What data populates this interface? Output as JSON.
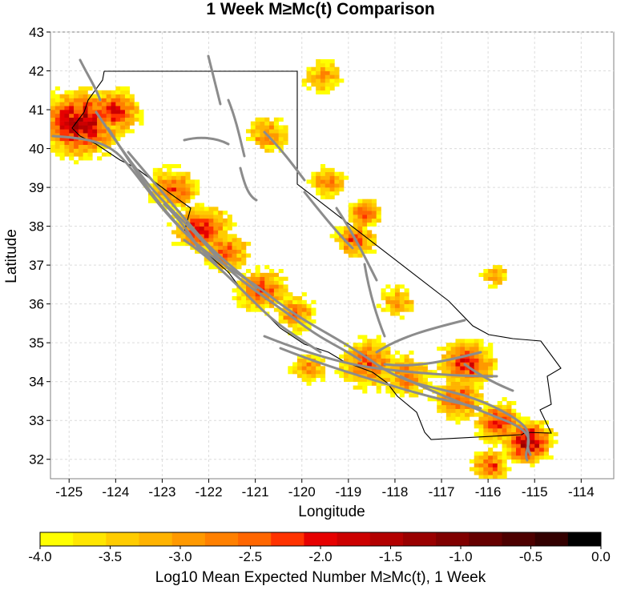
{
  "title": "1 Week M≥Mc(t) Comparison",
  "x_axis": {
    "label": "Longitude",
    "ticks": [
      "-125",
      "-124",
      "-123",
      "-122",
      "-121",
      "-120",
      "-119",
      "-118",
      "-117",
      "-116",
      "-115",
      "-114"
    ]
  },
  "y_axis": {
    "label": "Latitude",
    "ticks": [
      "43",
      "42",
      "41",
      "40",
      "39",
      "38",
      "37",
      "36",
      "35",
      "34",
      "33",
      "32"
    ]
  },
  "colorbar": {
    "label": "Log10 Mean Expected Number M≥Mc(t), 1 Week",
    "ticks": [
      "-4.0",
      "-3.5",
      "-3.0",
      "-2.5",
      "-2.0",
      "-1.5",
      "-1.0",
      "-0.5",
      "0.0"
    ],
    "colors": [
      "#ffff00",
      "#ffe600",
      "#ffcc00",
      "#ffb300",
      "#ff9900",
      "#ff8000",
      "#ff6600",
      "#ff3300",
      "#e60000",
      "#cc0000",
      "#b30000",
      "#990000",
      "#800000",
      "#660000",
      "#4d0000",
      "#330000",
      "#000000"
    ]
  },
  "chart_data": {
    "type": "heatmap",
    "title": "1 Week M≥Mc(t) Comparison",
    "xlabel": "Longitude",
    "ylabel": "Latitude",
    "xlim": [
      -125.4,
      -113.3
    ],
    "ylim": [
      31.5,
      43.0
    ],
    "grid": true,
    "colorbar_range": [
      -4.0,
      0.0
    ],
    "colorbar_label": "Log10 Mean Expected Number M≥Mc(t), 1 Week",
    "hotspots": [
      {
        "lon": -124.8,
        "lat": 40.6,
        "value": -1.5,
        "spread": 0.55
      },
      {
        "lon": -124.1,
        "lat": 40.9,
        "value": -1.9,
        "spread": 0.4
      },
      {
        "lon": -122.8,
        "lat": 38.9,
        "value": -2.4,
        "spread": 0.45
      },
      {
        "lon": -122.2,
        "lat": 37.9,
        "value": -2.0,
        "spread": 0.45
      },
      {
        "lon": -121.7,
        "lat": 37.3,
        "value": -2.3,
        "spread": 0.4
      },
      {
        "lon": -120.9,
        "lat": 36.3,
        "value": -2.3,
        "spread": 0.45
      },
      {
        "lon": -120.2,
        "lat": 35.7,
        "value": -2.6,
        "spread": 0.4
      },
      {
        "lon": -118.9,
        "lat": 37.6,
        "value": -2.3,
        "spread": 0.35
      },
      {
        "lon": -118.7,
        "lat": 38.3,
        "value": -2.3,
        "spread": 0.3
      },
      {
        "lon": -119.5,
        "lat": 39.1,
        "value": -2.6,
        "spread": 0.35
      },
      {
        "lon": -118.6,
        "lat": 34.4,
        "value": -2.3,
        "spread": 0.5
      },
      {
        "lon": -117.8,
        "lat": 34.1,
        "value": -2.5,
        "spread": 0.45
      },
      {
        "lon": -116.5,
        "lat": 34.4,
        "value": -2.0,
        "spread": 0.45
      },
      {
        "lon": -116.7,
        "lat": 33.5,
        "value": -2.2,
        "spread": 0.4
      },
      {
        "lon": -115.8,
        "lat": 32.9,
        "value": -2.1,
        "spread": 0.4
      },
      {
        "lon": -115.2,
        "lat": 32.4,
        "value": -1.4,
        "spread": 0.35
      },
      {
        "lon": -116.0,
        "lat": 31.8,
        "value": -2.2,
        "spread": 0.3
      },
      {
        "lon": -119.6,
        "lat": 41.8,
        "value": -2.8,
        "spread": 0.4
      },
      {
        "lon": -120.8,
        "lat": 40.3,
        "value": -2.7,
        "spread": 0.4
      },
      {
        "lon": -118.0,
        "lat": 36.0,
        "value": -2.9,
        "spread": 0.4
      },
      {
        "lon": -115.9,
        "lat": 36.7,
        "value": -2.9,
        "spread": 0.3
      },
      {
        "lon": -119.9,
        "lat": 34.3,
        "value": -2.7,
        "spread": 0.35
      }
    ]
  }
}
